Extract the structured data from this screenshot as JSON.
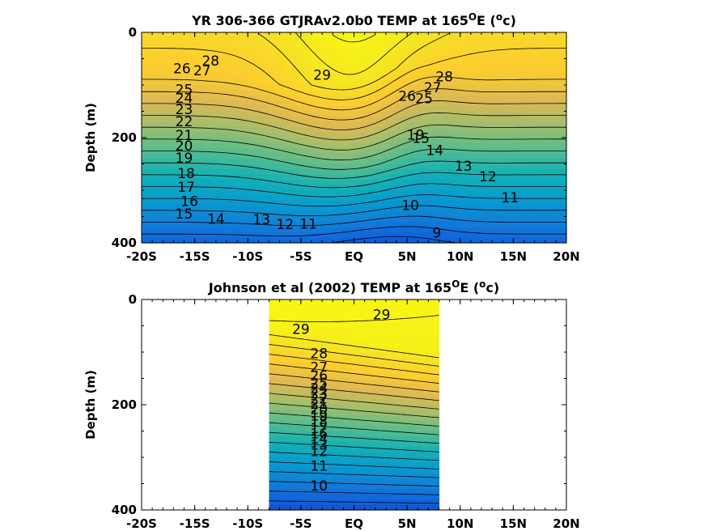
{
  "chart_data": [
    {
      "type": "heatmap",
      "title_prefix": "YR 306-366 GTJRAv2.0b0 TEMP at 165",
      "title_deg": "O",
      "title_mid": "E (",
      "title_unit_deg": "o",
      "title_suffix": "c)",
      "xlabel": "",
      "ylabel": "Depth (m)",
      "x_ticks": [
        "-20S",
        "-15S",
        "-10S",
        "-5S",
        "EQ",
        "5N",
        "10N",
        "15N",
        "20N"
      ],
      "y_ticks": [
        "0",
        "200",
        "400"
      ],
      "xlim": [
        -20,
        20
      ],
      "ylim": [
        400,
        0
      ],
      "colormap": "parula",
      "contour_labels": [
        {
          "text": "28",
          "x": -13.5,
          "y": 55
        },
        {
          "text": "29",
          "x": -3.0,
          "y": 82
        },
        {
          "text": "27",
          "x": -14.3,
          "y": 74
        },
        {
          "text": "26",
          "x": -16.2,
          "y": 70
        },
        {
          "text": "25",
          "x": -16.0,
          "y": 110
        },
        {
          "text": "24",
          "x": -16.0,
          "y": 126
        },
        {
          "text": "23",
          "x": -16.0,
          "y": 148
        },
        {
          "text": "22",
          "x": -16.0,
          "y": 171
        },
        {
          "text": "21",
          "x": -16.0,
          "y": 197
        },
        {
          "text": "20",
          "x": -16.0,
          "y": 217
        },
        {
          "text": "19",
          "x": -16.0,
          "y": 240
        },
        {
          "text": "18",
          "x": -15.8,
          "y": 269
        },
        {
          "text": "17",
          "x": -15.8,
          "y": 295
        },
        {
          "text": "16",
          "x": -15.5,
          "y": 322
        },
        {
          "text": "15",
          "x": -16.0,
          "y": 346
        },
        {
          "text": "14",
          "x": -13.0,
          "y": 356
        },
        {
          "text": "13",
          "x": -8.7,
          "y": 357
        },
        {
          "text": "12",
          "x": -6.5,
          "y": 366
        },
        {
          "text": "11",
          "x": -4.3,
          "y": 365
        },
        {
          "text": "28",
          "x": 8.5,
          "y": 85
        },
        {
          "text": "27",
          "x": 7.4,
          "y": 106
        },
        {
          "text": "26",
          "x": 5.0,
          "y": 122
        },
        {
          "text": "25",
          "x": 6.6,
          "y": 127
        },
        {
          "text": "19",
          "x": 5.8,
          "y": 196
        },
        {
          "text": "15",
          "x": 6.3,
          "y": 202
        },
        {
          "text": "14",
          "x": 7.6,
          "y": 225
        },
        {
          "text": "13",
          "x": 10.3,
          "y": 255
        },
        {
          "text": "12",
          "x": 12.6,
          "y": 275
        },
        {
          "text": "11",
          "x": 14.7,
          "y": 315
        },
        {
          "text": "10",
          "x": 5.3,
          "y": 330
        },
        {
          "text": "9",
          "x": 7.8,
          "y": 382
        }
      ]
    },
    {
      "type": "heatmap",
      "title_prefix": "Johnson et al (2002) TEMP at 165",
      "title_deg": "O",
      "title_mid": "E (",
      "title_unit_deg": "o",
      "title_suffix": "c)",
      "xlabel": "",
      "ylabel": "Depth (m)",
      "x_ticks": [
        "-20S",
        "-15S",
        "-10S",
        "-5S",
        "EQ",
        "5N",
        "10N",
        "15N",
        "20N"
      ],
      "y_ticks": [
        "0",
        "200",
        "400"
      ],
      "xlim": [
        -20,
        20
      ],
      "ylim": [
        400,
        0
      ],
      "data_x_range": [
        -8,
        8
      ],
      "colormap": "parula",
      "contour_labels": [
        {
          "text": "29",
          "x": 2.6,
          "y": 30
        },
        {
          "text": "29",
          "x": -5.0,
          "y": 58
        },
        {
          "text": "28",
          "x": -3.3,
          "y": 104
        },
        {
          "text": "27",
          "x": -3.3,
          "y": 130
        },
        {
          "text": "26",
          "x": -3.3,
          "y": 146
        },
        {
          "text": "25",
          "x": -3.3,
          "y": 160
        },
        {
          "text": "24",
          "x": -3.3,
          "y": 170
        },
        {
          "text": "23",
          "x": -3.3,
          "y": 180
        },
        {
          "text": "22",
          "x": -3.3,
          "y": 190
        },
        {
          "text": "21",
          "x": -3.3,
          "y": 200
        },
        {
          "text": "20",
          "x": -3.3,
          "y": 210
        },
        {
          "text": "19",
          "x": -3.3,
          "y": 222
        },
        {
          "text": "18",
          "x": -3.3,
          "y": 234
        },
        {
          "text": "17",
          "x": -3.3,
          "y": 246
        },
        {
          "text": "16",
          "x": -3.3,
          "y": 256
        },
        {
          "text": "14",
          "x": -3.3,
          "y": 266
        },
        {
          "text": "13",
          "x": -3.3,
          "y": 278
        },
        {
          "text": "12",
          "x": -3.3,
          "y": 290
        },
        {
          "text": "11",
          "x": -3.3,
          "y": 318
        },
        {
          "text": "10",
          "x": -3.3,
          "y": 355
        }
      ]
    }
  ]
}
